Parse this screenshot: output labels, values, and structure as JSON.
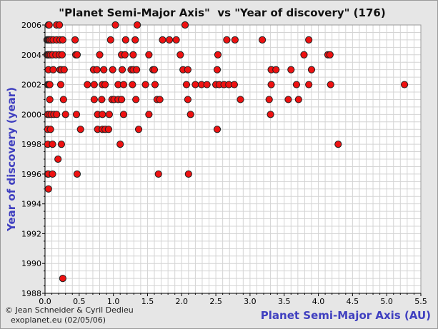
{
  "colors": {
    "background": "#e6e6e6",
    "plot_area": "#ffffff",
    "grid": "#d4d4d4",
    "point_fill": "#ee1111",
    "point_stroke": "#222222",
    "axis_label": "#4040c0"
  },
  "credits": {
    "line1": "© Jean Schneider & Cyril Dedieu",
    "line2": "exoplanet.eu (02/05/06)"
  },
  "chart_data": {
    "type": "scatter",
    "title": "\"Planet Semi-Major Axis\"  vs \"Year of discovery\" (176)",
    "xlabel": "Planet Semi-Major Axis (AU)",
    "ylabel": "Year of discovery (year)",
    "xlim": [
      0,
      5.5
    ],
    "ylim": [
      1988,
      2006
    ],
    "x_ticks": [
      "0.0",
      "0.5",
      "1.0",
      "1.5",
      "2.0",
      "2.5",
      "3.0",
      "3.5",
      "4.0",
      "4.5",
      "5.0",
      "5.5"
    ],
    "y_ticks": [
      "1988",
      "1990",
      "1992",
      "1994",
      "1996",
      "1998",
      "2000",
      "2002",
      "2004",
      "2006"
    ],
    "grid": true,
    "legend": "none",
    "series": [
      {
        "points": [
          [
            0.05,
            2006
          ],
          [
            0.06,
            2006
          ],
          [
            0.17,
            2006
          ],
          [
            0.21,
            2006
          ],
          [
            1.03,
            2006
          ],
          [
            1.35,
            2006
          ],
          [
            2.05,
            2006
          ],
          [
            0.03,
            2005
          ],
          [
            0.04,
            2005
          ],
          [
            0.05,
            2005
          ],
          [
            0.06,
            2005
          ],
          [
            0.07,
            2005
          ],
          [
            0.09,
            2005
          ],
          [
            0.12,
            2005
          ],
          [
            0.17,
            2005
          ],
          [
            0.22,
            2005
          ],
          [
            0.26,
            2005
          ],
          [
            0.44,
            2005
          ],
          [
            0.96,
            2005
          ],
          [
            1.18,
            2005
          ],
          [
            1.32,
            2005
          ],
          [
            1.72,
            2005
          ],
          [
            1.82,
            2005
          ],
          [
            1.92,
            2005
          ],
          [
            2.66,
            2005
          ],
          [
            2.78,
            2005
          ],
          [
            3.18,
            2005
          ],
          [
            3.86,
            2005
          ],
          [
            0.03,
            2004
          ],
          [
            0.04,
            2004
          ],
          [
            0.05,
            2004
          ],
          [
            0.06,
            2004
          ],
          [
            0.08,
            2004
          ],
          [
            0.11,
            2004
          ],
          [
            0.16,
            2004
          ],
          [
            0.21,
            2004
          ],
          [
            0.25,
            2004
          ],
          [
            0.45,
            2004
          ],
          [
            0.47,
            2004
          ],
          [
            0.8,
            2004
          ],
          [
            1.12,
            2004
          ],
          [
            1.17,
            2004
          ],
          [
            1.29,
            2004
          ],
          [
            1.52,
            2004
          ],
          [
            1.98,
            2004
          ],
          [
            2.53,
            2004
          ],
          [
            3.79,
            2004
          ],
          [
            4.14,
            2004
          ],
          [
            4.17,
            2004
          ],
          [
            0.05,
            2003
          ],
          [
            0.12,
            2003
          ],
          [
            0.22,
            2003
          ],
          [
            0.24,
            2003
          ],
          [
            0.28,
            2003
          ],
          [
            0.71,
            2003
          ],
          [
            0.76,
            2003
          ],
          [
            0.86,
            2003
          ],
          [
            0.99,
            2003
          ],
          [
            1.13,
            2003
          ],
          [
            1.26,
            2003
          ],
          [
            1.29,
            2003
          ],
          [
            1.34,
            2003
          ],
          [
            1.58,
            2003
          ],
          [
            1.6,
            2003
          ],
          [
            2.02,
            2003
          ],
          [
            2.09,
            2003
          ],
          [
            2.52,
            2003
          ],
          [
            3.31,
            2003
          ],
          [
            3.38,
            2003
          ],
          [
            3.6,
            2003
          ],
          [
            3.9,
            2003
          ],
          [
            0.04,
            2002
          ],
          [
            0.05,
            2002
          ],
          [
            0.06,
            2002
          ],
          [
            0.07,
            2002
          ],
          [
            0.23,
            2002
          ],
          [
            0.62,
            2002
          ],
          [
            0.72,
            2002
          ],
          [
            0.84,
            2002
          ],
          [
            0.88,
            2002
          ],
          [
            1.07,
            2002
          ],
          [
            1.15,
            2002
          ],
          [
            1.28,
            2002
          ],
          [
            1.47,
            2002
          ],
          [
            1.61,
            2002
          ],
          [
            2.07,
            2002
          ],
          [
            2.2,
            2002
          ],
          [
            2.29,
            2002
          ],
          [
            2.37,
            2002
          ],
          [
            2.5,
            2002
          ],
          [
            2.55,
            2002
          ],
          [
            2.62,
            2002
          ],
          [
            2.69,
            2002
          ],
          [
            2.77,
            2002
          ],
          [
            3.31,
            2002
          ],
          [
            3.68,
            2002
          ],
          [
            3.86,
            2002
          ],
          [
            4.18,
            2002
          ],
          [
            5.26,
            2002
          ],
          [
            0.07,
            2001
          ],
          [
            0.27,
            2001
          ],
          [
            0.72,
            2001
          ],
          [
            0.83,
            2001
          ],
          [
            0.98,
            2001
          ],
          [
            1.01,
            2001
          ],
          [
            1.07,
            2001
          ],
          [
            1.12,
            2001
          ],
          [
            1.33,
            2001
          ],
          [
            1.64,
            2001
          ],
          [
            1.68,
            2001
          ],
          [
            2.09,
            2001
          ],
          [
            2.86,
            2001
          ],
          [
            3.28,
            2001
          ],
          [
            3.56,
            2001
          ],
          [
            3.71,
            2001
          ],
          [
            0.04,
            2000
          ],
          [
            0.06,
            2000
          ],
          [
            0.09,
            2000
          ],
          [
            0.13,
            2000
          ],
          [
            0.17,
            2000
          ],
          [
            0.3,
            2000
          ],
          [
            0.46,
            2000
          ],
          [
            0.77,
            2000
          ],
          [
            0.84,
            2000
          ],
          [
            0.94,
            2000
          ],
          [
            1.15,
            2000
          ],
          [
            1.52,
            2000
          ],
          [
            2.13,
            2000
          ],
          [
            3.3,
            2000
          ],
          [
            0.04,
            1999
          ],
          [
            0.08,
            1999
          ],
          [
            0.52,
            1999
          ],
          [
            0.77,
            1999
          ],
          [
            0.84,
            1999
          ],
          [
            0.88,
            1999
          ],
          [
            0.93,
            1999
          ],
          [
            1.37,
            1999
          ],
          [
            2.52,
            1999
          ],
          [
            0.04,
            1998
          ],
          [
            0.11,
            1998
          ],
          [
            0.24,
            1998
          ],
          [
            1.1,
            1998
          ],
          [
            4.29,
            1998
          ],
          [
            0.19,
            1997
          ],
          [
            0.04,
            1996
          ],
          [
            0.05,
            1996
          ],
          [
            0.11,
            1996
          ],
          [
            0.47,
            1996
          ],
          [
            1.66,
            1996
          ],
          [
            2.1,
            1996
          ],
          [
            0.05,
            1995
          ],
          [
            0.26,
            1989
          ]
        ]
      }
    ]
  }
}
